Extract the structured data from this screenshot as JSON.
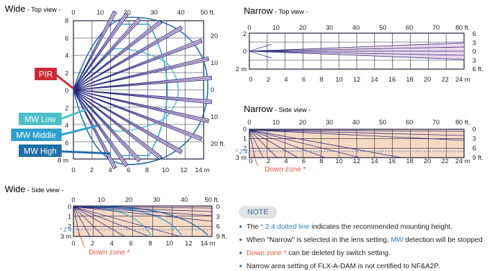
{
  "titles": {
    "wide_top": {
      "main": "Wide",
      "sub": " - Top view -"
    },
    "narrow_top": {
      "main": "Narrow",
      "sub": " - Top view -"
    },
    "narrow_side": {
      "main": "Narrow",
      "sub": " - Side view -"
    },
    "wide_side": {
      "main": "Wide",
      "sub": " - Side view -"
    }
  },
  "wide_top": {
    "ft_ticks": [
      "0",
      "10",
      "20",
      "30",
      "40",
      "50 ft."
    ],
    "m_ticks": [
      "0",
      "2",
      "4",
      "6",
      "8",
      "10",
      "12",
      "14 m"
    ],
    "left_ticks": [
      "8",
      "6",
      "4",
      "2",
      "0",
      "2",
      "4",
      "6",
      "8 m"
    ],
    "right_ticks": [
      "20",
      "10",
      "0",
      "10",
      "20 ft."
    ]
  },
  "legend": {
    "pir": "PIR",
    "mw_low": "MW Low",
    "mw_middle": "MW Middle",
    "mw_high": "MW High"
  },
  "narrow_top": {
    "ft_ticks": [
      "0",
      "10",
      "20",
      "30",
      "40",
      "50",
      "60",
      "70",
      "80 ft."
    ],
    "m_ticks": [
      "0",
      "2",
      "4",
      "6",
      "8",
      "10",
      "12",
      "14",
      "16",
      "18",
      "20",
      "22",
      "24 m"
    ],
    "left_ticks": [
      "2",
      "0",
      "2 m"
    ],
    "right_ticks": [
      "6",
      "3",
      "0",
      "3",
      "6 ft."
    ]
  },
  "narrow_side": {
    "ft_ticks": [
      "0",
      "10",
      "20",
      "30",
      "40",
      "50",
      "60",
      "70",
      "80 ft."
    ],
    "m_ticks": [
      "0",
      "2",
      "4",
      "6",
      "8",
      "10",
      "12",
      "14",
      "16",
      "18",
      "20",
      "22",
      "24 m"
    ],
    "left_ticks": [
      "0",
      "1",
      "2",
      "3 m"
    ],
    "right_ticks": [
      "0",
      "3",
      "6",
      "9 ft."
    ],
    "mount_label": "* 2.4",
    "down_zone": "Down zone *"
  },
  "wide_side": {
    "ft_ticks": [
      "0",
      "10",
      "20",
      "30",
      "40",
      "50 ft."
    ],
    "m_ticks": [
      "0",
      "2",
      "4",
      "6",
      "8",
      "10",
      "12",
      "14 m"
    ],
    "left_ticks": [
      "0",
      "1",
      "2",
      "3 m"
    ],
    "right_ticks": [
      "0",
      "3",
      "6",
      "9 ft."
    ],
    "mount_label": "* 2.4",
    "down_zone": "Down zone *"
  },
  "note": {
    "title": "NOTE",
    "line1": {
      "a": "The ",
      "b": "* 2.4 dotted line",
      "c": " indicates the recommended mounting height."
    },
    "line2": {
      "a": "When \"Narrow\" is selected in the lens setting, ",
      "b": "MW",
      "c": " detection will be stopped"
    },
    "line3": {
      "a": "Down zone *",
      "b": " can be deleted by switch setting."
    },
    "line4": "Narrow area setting of FLX-A-DAM is not certified to NF&A2P."
  },
  "colors": {
    "grid": "#1c1c3a",
    "beam": "#2a2a80",
    "beam_fill": "#e6cde3",
    "zone_fill": "#f7d9c4",
    "pir": "#cc2a33",
    "mw_low": "#4bc0c8",
    "mw_middle": "#2f9fcf",
    "mw_high": "#1f6fa6",
    "down": "#e0593a",
    "mount": "#2c7fc0"
  }
}
